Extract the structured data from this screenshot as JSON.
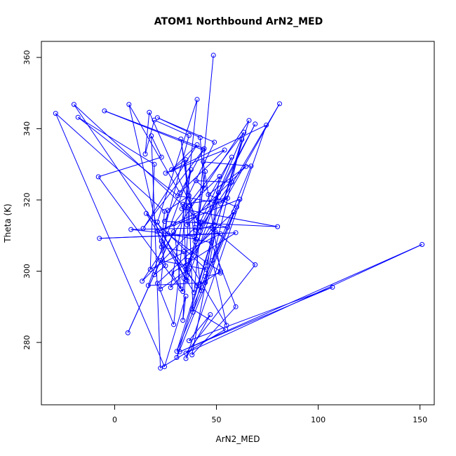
{
  "chart_data": {
    "type": "line",
    "title": "ATOM1 Northbound ArN2_MED",
    "xlabel": "ArN2_MED",
    "ylabel": "Theta (K)",
    "xlim": [
      -36,
      157
    ],
    "ylim": [
      262.5,
      364.5
    ],
    "xticks": [
      0,
      50,
      100,
      150
    ],
    "yticks": [
      280,
      300,
      320,
      340,
      360
    ],
    "grid": false,
    "legend": "none",
    "color": "#0000FF",
    "marker": "open-circle",
    "series": [
      {
        "points": [
          [
            48.5,
            360.6
          ],
          [
            40.0,
            309.0
          ],
          [
            44.5,
            328.0
          ],
          [
            39.5,
            308.3
          ],
          [
            35.0,
            297.6
          ],
          [
            21.0,
            313.8
          ],
          [
            40.5,
            348.2
          ],
          [
            29.0,
            285.0
          ],
          [
            21.0,
            296.6
          ],
          [
            58.5,
            316.6
          ],
          [
            30.5,
            277.5
          ],
          [
            66.0,
            342.3
          ],
          [
            13.5,
            297.2
          ],
          [
            39.5,
            312.3
          ],
          [
            32.5,
            337.1
          ],
          [
            37.0,
            318.5
          ],
          [
            51.5,
            326.6
          ],
          [
            44.5,
            296.8
          ],
          [
            16.5,
            296.0
          ],
          [
            37.5,
            328.5
          ],
          [
            27.5,
            295.4
          ],
          [
            36.0,
            300.5
          ],
          [
            22.5,
            295.0
          ],
          [
            26.0,
            317.1
          ],
          [
            36.5,
            321.2
          ],
          [
            42.5,
            294.6
          ],
          [
            23.0,
            308.4
          ],
          [
            36.5,
            338.1
          ],
          [
            19.5,
            342.4
          ],
          [
            15.0,
            332.9
          ],
          [
            17.0,
            344.6
          ],
          [
            42.0,
            312.5
          ],
          [
            69.0,
            341.3
          ],
          [
            42.0,
            311.2
          ],
          [
            39.0,
            294.0
          ],
          [
            15.5,
            316.2
          ],
          [
            45.0,
            300.5
          ],
          [
            22.5,
            303.0
          ],
          [
            6.5,
            282.7
          ],
          [
            29.0,
            311.1
          ],
          [
            19.5,
            299.0
          ],
          [
            25.0,
            301.5
          ],
          [
            7.0,
            346.8
          ],
          [
            32.0,
            322.0
          ],
          [
            54.0,
            334.0
          ],
          [
            25.0,
            327.5
          ],
          [
            74.5,
            341.0
          ],
          [
            35.0,
            275.5
          ],
          [
            47.0,
            287.8
          ],
          [
            36.5,
            280.5
          ],
          [
            107.0,
            295.5
          ],
          [
            32.0,
            277.4
          ],
          [
            151.0,
            307.5
          ],
          [
            35.0,
            277.0
          ],
          [
            69.0,
            301.8
          ],
          [
            48.0,
            312.0
          ],
          [
            36.0,
            303.0
          ],
          [
            55.0,
            284.8
          ],
          [
            48.0,
            303.0
          ],
          [
            62.5,
            337.0
          ],
          [
            30.5,
            275.8
          ],
          [
            61.5,
            320.2
          ],
          [
            21.0,
            311.1
          ],
          [
            55.5,
            320.5
          ],
          [
            33.5,
            318.8
          ],
          [
            35.5,
            297.4
          ],
          [
            51.0,
            322.0
          ],
          [
            49.0,
            313.0
          ],
          [
            40.0,
            311.5
          ],
          [
            57.5,
            332.0
          ],
          [
            40.0,
            314.4
          ],
          [
            55.5,
            312.3
          ],
          [
            8.0,
            311.7
          ],
          [
            39.0,
            309.8
          ],
          [
            57.5,
            325.0
          ],
          [
            40.0,
            325.4
          ],
          [
            44.0,
            323.3
          ],
          [
            42.0,
            337.5
          ],
          [
            21.0,
            343.1
          ],
          [
            49.0,
            336.2
          ],
          [
            33.0,
            317.5
          ],
          [
            80.0,
            312.5
          ],
          [
            24.5,
            314.0
          ],
          [
            43.5,
            334.0
          ],
          [
            -5.0,
            345.0
          ],
          [
            44.0,
            334.4
          ],
          [
            14.0,
            312.0
          ],
          [
            40.5,
            335.5
          ],
          [
            28.0,
            328.5
          ],
          [
            35.0,
            331.3
          ],
          [
            35.5,
            313.0
          ],
          [
            64.5,
            329.4
          ],
          [
            46.0,
            321.5
          ],
          [
            60.0,
            318.0
          ],
          [
            44.5,
            298.5
          ],
          [
            52.0,
            299.5
          ],
          [
            43.5,
            330.7
          ],
          [
            67.0,
            329.5
          ],
          [
            38.0,
            289.4
          ],
          [
            54.5,
            283.7
          ],
          [
            22.5,
            272.8
          ],
          [
            18.0,
            338.0
          ],
          [
            23.0,
            332.0
          ],
          [
            -8.0,
            326.5
          ],
          [
            32.5,
            295.0
          ],
          [
            29.0,
            313.3
          ],
          [
            63.5,
            339.0
          ],
          [
            35.0,
            300.5
          ],
          [
            81.0,
            347.0
          ],
          [
            52.0,
            319.0
          ],
          [
            31.0,
            321.2
          ],
          [
            -18.0,
            343.2
          ],
          [
            19.5,
            330.0
          ],
          [
            17.5,
            300.5
          ],
          [
            52.0,
            310.5
          ],
          [
            -7.5,
            309.2
          ],
          [
            59.5,
            310.8
          ],
          [
            28.0,
            299.5
          ],
          [
            33.5,
            294.3
          ],
          [
            34.0,
            298.0
          ],
          [
            42.5,
            313.8
          ],
          [
            -20.0,
            346.8
          ],
          [
            40.5,
            295.8
          ],
          [
            52.0,
            300.0
          ],
          [
            45.0,
            302.5
          ],
          [
            26.0,
            310.5
          ],
          [
            47.5,
            308.0
          ],
          [
            59.5,
            290.0
          ],
          [
            38.0,
            276.5
          ],
          [
            49.5,
            311.1
          ],
          [
            38.5,
            288.5
          ],
          [
            36.5,
            318.2
          ],
          [
            33.5,
            286.2
          ],
          [
            35.0,
            293.0
          ],
          [
            24.5,
            273.2
          ],
          [
            -29.0,
            344.3
          ],
          [
            24.5,
            316.8
          ],
          [
            23.0,
            306.8
          ],
          [
            34.0,
            305.5
          ],
          [
            35.0,
            301.6
          ]
        ]
      }
    ]
  }
}
